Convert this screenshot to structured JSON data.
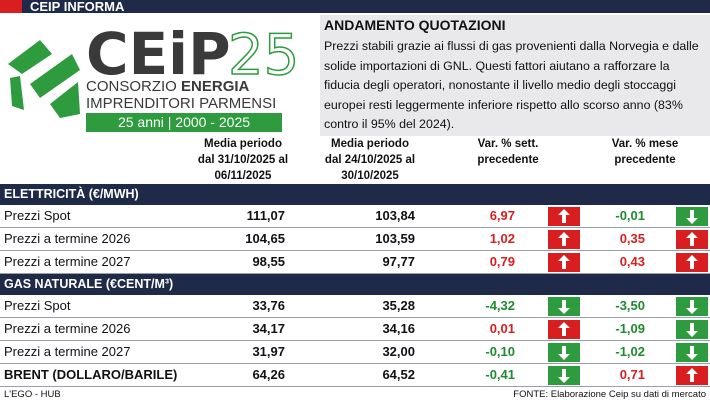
{
  "header": {
    "label": "CEIP INFORMA"
  },
  "logo": {
    "name": "CEiP",
    "anniversary": "25",
    "line1": "CONSORZIO",
    "line1_bold": "ENERGIA",
    "line2": "IMPRENDITORI PARMENSI",
    "tagline": "25 anni | 2000 - 2025"
  },
  "summary": {
    "title": "ANDAMENTO QUOTAZIONI",
    "text": "Prezzi stabili grazie ai flussi di gas provenienti dalla Norvegia e dalle solide importazioni di GNL. Questi fattori aiutano a rafforzare la fiducia degli operatori, nonostante il livello medio degli stoccaggi europei resti leggermente inferiore rispetto allo scorso anno (83% contro il 95% del 2024)."
  },
  "table": {
    "columns": [
      "Media periodo dal 31/10/2025 al 06/11/2025",
      "Media periodo dal 24/10/2025 al 30/10/2025",
      "Var. % sett. precedente",
      "Var. % mese precedente"
    ],
    "sections": [
      {
        "title": "ELETTRICITÀ (€/MWH)",
        "rows": [
          {
            "label": "Prezzi Spot",
            "values": [
              "111,07",
              "103,84",
              "6,97",
              "-0,01"
            ]
          },
          {
            "label": "Prezzi a termine 2026",
            "values": [
              "104,65",
              "103,59",
              "1,02",
              "0,35"
            ]
          },
          {
            "label": "Prezzi a termine 2027",
            "values": [
              "98,55",
              "97,77",
              "0,79",
              "0,43"
            ]
          }
        ]
      },
      {
        "title": "GAS NATURALE (€CENT/M³)",
        "rows": [
          {
            "label": "Prezzi Spot",
            "values": [
              "33,76",
              "35,28",
              "-4,32",
              "-3,50"
            ]
          },
          {
            "label": "Prezzi a termine 2026",
            "values": [
              "34,17",
              "34,16",
              "0,01",
              "-1,09"
            ]
          },
          {
            "label": "Prezzi a termine 2027",
            "values": [
              "31,97",
              "32,00",
              "-0,10",
              "-1,02"
            ]
          }
        ]
      }
    ],
    "brent": {
      "label": "BRENT (DOLLARO/BARILE)",
      "values": [
        "64,26",
        "64,52",
        "-0,41",
        "0,71"
      ]
    }
  },
  "footer": {
    "left": "L'EGO - HUB",
    "right": "FONTE: Elaborazione Ceip su dati di mercato"
  }
}
